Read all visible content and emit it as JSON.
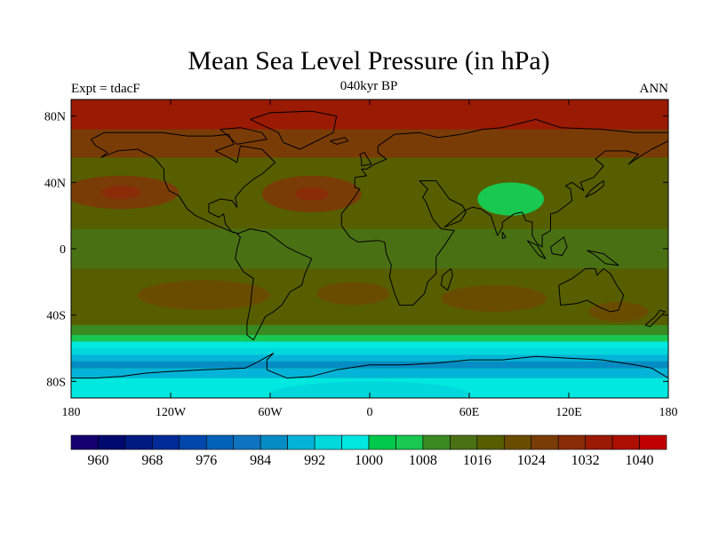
{
  "title": "Mean Sea Level Pressure (in hPa)",
  "experiment_label": "Expt = tdacF",
  "period_label": "040kyr BP",
  "season_label": "ANN",
  "map": {
    "projection": "cylindrical-equidistant",
    "lon_range": [
      -180,
      180
    ],
    "lat_range": [
      -90,
      90
    ],
    "lon_ticks": [
      {
        "value": -180,
        "label": "180"
      },
      {
        "value": -120,
        "label": "120W"
      },
      {
        "value": -60,
        "label": "60W"
      },
      {
        "value": 0,
        "label": "0"
      },
      {
        "value": 60,
        "label": "60E"
      },
      {
        "value": 120,
        "label": "120E"
      },
      {
        "value": 180,
        "label": "180"
      }
    ],
    "lat_ticks": [
      {
        "value": 80,
        "label": "80N"
      },
      {
        "value": 40,
        "label": "40N"
      },
      {
        "value": 0,
        "label": "0"
      },
      {
        "value": -40,
        "label": "40S"
      },
      {
        "value": -80,
        "label": "80S"
      }
    ],
    "coastline_color": "#000000"
  },
  "colorbar": {
    "levels": [
      956,
      960,
      964,
      968,
      972,
      976,
      980,
      984,
      988,
      992,
      996,
      1000,
      1004,
      1008,
      1012,
      1016,
      1020,
      1024,
      1028,
      1032,
      1036,
      1040,
      1044
    ],
    "colors": [
      "#14006e",
      "#00096e",
      "#001a82",
      "#002b96",
      "#0048ac",
      "#0062b8",
      "#0f74c0",
      "#068cc4",
      "#04b4d8",
      "#00d8dc",
      "#00e8e0",
      "#00c84a",
      "#18c850",
      "#3a8a22",
      "#4a7014",
      "#565e00",
      "#6a4c00",
      "#7a3c06",
      "#8a2c08",
      "#9a1a04",
      "#ac0e02",
      "#c00000"
    ],
    "labels": [
      {
        "value": 960,
        "label": "960"
      },
      {
        "value": 968,
        "label": "968"
      },
      {
        "value": 976,
        "label": "976"
      },
      {
        "value": 984,
        "label": "984"
      },
      {
        "value": 992,
        "label": "992"
      },
      {
        "value": 1000,
        "label": "1000"
      },
      {
        "value": 1008,
        "label": "1008"
      },
      {
        "value": 1016,
        "label": "1016"
      },
      {
        "value": 1024,
        "label": "1024"
      },
      {
        "value": 1032,
        "label": "1032"
      },
      {
        "value": 1040,
        "label": "1040"
      }
    ]
  },
  "field_background_hpa": 1016,
  "field_features": [
    {
      "type": "band",
      "lat_range": [
        55,
        90
      ],
      "hpa": 1024
    },
    {
      "type": "band",
      "lat_range": [
        72,
        90
      ],
      "hpa": 1032
    },
    {
      "type": "band",
      "lat_range": [
        20,
        48
      ],
      "hpa": 1016
    },
    {
      "type": "band",
      "lat_range": [
        -12,
        12
      ],
      "hpa": 1012
    },
    {
      "type": "band",
      "lat_range": [
        -46,
        -20
      ],
      "hpa": 1016
    },
    {
      "type": "band",
      "lat_range": [
        -52,
        -46
      ],
      "hpa": 1008
    },
    {
      "type": "band",
      "lat_range": [
        -56,
        -52
      ],
      "hpa": 1004
    },
    {
      "type": "band",
      "lat_range": [
        -60,
        -56
      ],
      "hpa": 996
    },
    {
      "type": "band",
      "lat_range": [
        -64,
        -60
      ],
      "hpa": 992
    },
    {
      "type": "band",
      "lat_range": [
        -68,
        -64
      ],
      "hpa": 988
    },
    {
      "type": "band",
      "lat_range": [
        -72,
        -68
      ],
      "hpa": 984
    },
    {
      "type": "band",
      "lat_range": [
        -78,
        -72
      ],
      "hpa": 988
    },
    {
      "type": "band",
      "lat_range": [
        -90,
        -78
      ],
      "hpa": 996
    },
    {
      "type": "blob",
      "lon": -150,
      "lat": 34,
      "rlon": 35,
      "rlat": 10,
      "hpa": 1024
    },
    {
      "type": "blob",
      "lon": -150,
      "lat": 34,
      "rlon": 12,
      "rlat": 4,
      "hpa": 1028
    },
    {
      "type": "blob",
      "lon": -35,
      "lat": 33,
      "rlon": 30,
      "rlat": 11,
      "hpa": 1024
    },
    {
      "type": "blob",
      "lon": -35,
      "lat": 33,
      "rlon": 10,
      "rlat": 4,
      "hpa": 1028
    },
    {
      "type": "blob",
      "lon": 85,
      "lat": 30,
      "rlon": 20,
      "rlat": 10,
      "hpa": 1004
    },
    {
      "type": "blob",
      "lon": -100,
      "lat": -28,
      "rlon": 40,
      "rlat": 9,
      "hpa": 1020
    },
    {
      "type": "blob",
      "lon": -10,
      "lat": -27,
      "rlon": 22,
      "rlat": 7,
      "hpa": 1020
    },
    {
      "type": "blob",
      "lon": 75,
      "lat": -30,
      "rlon": 32,
      "rlat": 8,
      "hpa": 1020
    },
    {
      "type": "blob",
      "lon": 150,
      "lat": -38,
      "rlon": 18,
      "rlat": 6,
      "hpa": 1020
    },
    {
      "type": "blob",
      "lon": 0,
      "lat": -88,
      "rlon": 60,
      "rlat": 8,
      "hpa": 992
    }
  ],
  "coastlines": {
    "north_america": [
      [
        -168,
        66
      ],
      [
        -160,
        70
      ],
      [
        -140,
        70
      ],
      [
        -125,
        70
      ],
      [
        -110,
        68
      ],
      [
        -95,
        68
      ],
      [
        -85,
        69
      ],
      [
        -82,
        63
      ],
      [
        -93,
        59
      ],
      [
        -85,
        55
      ],
      [
        -80,
        52
      ],
      [
        -78,
        62
      ],
      [
        -65,
        60
      ],
      [
        -57,
        52
      ],
      [
        -65,
        45
      ],
      [
        -70,
        42
      ],
      [
        -76,
        37
      ],
      [
        -81,
        31
      ],
      [
        -80,
        25
      ],
      [
        -83,
        29
      ],
      [
        -90,
        30
      ],
      [
        -97,
        27
      ],
      [
        -97,
        22
      ],
      [
        -91,
        19
      ],
      [
        -88,
        21
      ],
      [
        -87,
        15
      ],
      [
        -83,
        10
      ],
      [
        -79,
        9
      ],
      [
        -85,
        11
      ],
      [
        -92,
        14
      ],
      [
        -105,
        20
      ],
      [
        -110,
        24
      ],
      [
        -115,
        32
      ],
      [
        -121,
        35
      ],
      [
        -124,
        42
      ],
      [
        -124,
        48
      ],
      [
        -130,
        55
      ],
      [
        -140,
        60
      ],
      [
        -152,
        59
      ],
      [
        -162,
        55
      ],
      [
        -158,
        58
      ],
      [
        -165,
        62
      ],
      [
        -168,
        66
      ]
    ],
    "greenland": [
      [
        -72,
        78
      ],
      [
        -60,
        82
      ],
      [
        -35,
        83
      ],
      [
        -20,
        80
      ],
      [
        -22,
        70
      ],
      [
        -42,
        60
      ],
      [
        -52,
        64
      ],
      [
        -55,
        70
      ],
      [
        -72,
        78
      ]
    ],
    "south_america": [
      [
        -80,
        9
      ],
      [
        -72,
        12
      ],
      [
        -62,
        10
      ],
      [
        -50,
        1
      ],
      [
        -44,
        -2
      ],
      [
        -35,
        -6
      ],
      [
        -39,
        -15
      ],
      [
        -41,
        -22
      ],
      [
        -48,
        -26
      ],
      [
        -53,
        -34
      ],
      [
        -58,
        -38
      ],
      [
        -63,
        -41
      ],
      [
        -65,
        -45
      ],
      [
        -68,
        -51
      ],
      [
        -70,
        -55
      ],
      [
        -74,
        -52
      ],
      [
        -74,
        -45
      ],
      [
        -72,
        -35
      ],
      [
        -71,
        -25
      ],
      [
        -70,
        -18
      ],
      [
        -76,
        -14
      ],
      [
        -81,
        -6
      ],
      [
        -80,
        0
      ],
      [
        -78,
        7
      ],
      [
        -80,
        9
      ]
    ],
    "eurasia_africa": [
      [
        -9,
        43
      ],
      [
        -9,
        37
      ],
      [
        -6,
        36
      ],
      [
        -10,
        30
      ],
      [
        -17,
        21
      ],
      [
        -17,
        14
      ],
      [
        -12,
        7
      ],
      [
        -7,
        4
      ],
      [
        5,
        5
      ],
      [
        9,
        4
      ],
      [
        10,
        -3
      ],
      [
        13,
        -10
      ],
      [
        12,
        -17
      ],
      [
        15,
        -27
      ],
      [
        18,
        -34
      ],
      [
        26,
        -34
      ],
      [
        33,
        -27
      ],
      [
        35,
        -20
      ],
      [
        40,
        -15
      ],
      [
        40,
        -5
      ],
      [
        45,
        2
      ],
      [
        51,
        11
      ],
      [
        43,
        12
      ],
      [
        38,
        18
      ],
      [
        34,
        28
      ],
      [
        32,
        31
      ],
      [
        35,
        36
      ],
      [
        30,
        41
      ],
      [
        40,
        41
      ],
      [
        48,
        30
      ],
      [
        56,
        26
      ],
      [
        58,
        22
      ],
      [
        55,
        17
      ],
      [
        45,
        13
      ],
      [
        57,
        23
      ],
      [
        62,
        25
      ],
      [
        67,
        24
      ],
      [
        73,
        20
      ],
      [
        77,
        8
      ],
      [
        80,
        13
      ],
      [
        80,
        16
      ],
      [
        87,
        21
      ],
      [
        92,
        22
      ],
      [
        94,
        17
      ],
      [
        98,
        16
      ],
      [
        98,
        8
      ],
      [
        101,
        3
      ],
      [
        104,
        1
      ],
      [
        104,
        8
      ],
      [
        109,
        11
      ],
      [
        109,
        21
      ],
      [
        113,
        22
      ],
      [
        122,
        29
      ],
      [
        121,
        36
      ],
      [
        118,
        38
      ],
      [
        122,
        40
      ],
      [
        129,
        35
      ],
      [
        127,
        40
      ],
      [
        135,
        43
      ],
      [
        141,
        50
      ],
      [
        136,
        54
      ],
      [
        142,
        59
      ],
      [
        155,
        59
      ],
      [
        162,
        57
      ],
      [
        156,
        51
      ],
      [
        162,
        55
      ],
      [
        170,
        60
      ],
      [
        180,
        65
      ],
      [
        180,
        70
      ],
      [
        160,
        70
      ],
      [
        140,
        72
      ],
      [
        115,
        73
      ],
      [
        100,
        78
      ],
      [
        80,
        73
      ],
      [
        68,
        72
      ],
      [
        55,
        69
      ],
      [
        41,
        67
      ],
      [
        30,
        70
      ],
      [
        15,
        69
      ],
      [
        5,
        62
      ],
      [
        5,
        58
      ],
      [
        10,
        54
      ],
      [
        3,
        51
      ],
      [
        -2,
        48
      ],
      [
        -5,
        48
      ],
      [
        -2,
        44
      ],
      [
        -9,
        43
      ]
    ],
    "australia": [
      [
        114,
        -22
      ],
      [
        122,
        -18
      ],
      [
        130,
        -12
      ],
      [
        136,
        -12
      ],
      [
        137,
        -16
      ],
      [
        141,
        -12
      ],
      [
        145,
        -15
      ],
      [
        149,
        -22
      ],
      [
        153,
        -28
      ],
      [
        150,
        -37
      ],
      [
        145,
        -38
      ],
      [
        138,
        -35
      ],
      [
        131,
        -31
      ],
      [
        125,
        -33
      ],
      [
        115,
        -34
      ],
      [
        114,
        -22
      ]
    ],
    "antarctica": [
      [
        -180,
        -78
      ],
      [
        -165,
        -78
      ],
      [
        -150,
        -77
      ],
      [
        -135,
        -75
      ],
      [
        -120,
        -74
      ],
      [
        -100,
        -73
      ],
      [
        -75,
        -72
      ],
      [
        -67,
        -68
      ],
      [
        -58,
        -63
      ],
      [
        -62,
        -67
      ],
      [
        -62,
        -73
      ],
      [
        -50,
        -78
      ],
      [
        -35,
        -77
      ],
      [
        -20,
        -73
      ],
      [
        0,
        -70
      ],
      [
        20,
        -70
      ],
      [
        40,
        -69
      ],
      [
        60,
        -67
      ],
      [
        80,
        -67
      ],
      [
        100,
        -65
      ],
      [
        120,
        -66
      ],
      [
        140,
        -67
      ],
      [
        160,
        -70
      ],
      [
        170,
        -72
      ],
      [
        180,
        -78
      ]
    ],
    "madagascar": [
      [
        44,
        -16
      ],
      [
        49,
        -12
      ],
      [
        50,
        -16
      ],
      [
        47,
        -25
      ],
      [
        43,
        -22
      ],
      [
        44,
        -16
      ]
    ],
    "great_britain": [
      [
        -5,
        50
      ],
      [
        1,
        51
      ],
      [
        -2,
        56
      ],
      [
        -3,
        58
      ],
      [
        -6,
        57
      ],
      [
        -5,
        54
      ],
      [
        -5,
        50
      ]
    ],
    "japan": [
      [
        130,
        31
      ],
      [
        136,
        34
      ],
      [
        141,
        38
      ],
      [
        141,
        41
      ],
      [
        138,
        39
      ],
      [
        133,
        35
      ],
      [
        130,
        31
      ]
    ],
    "borneo": [
      [
        109,
        1
      ],
      [
        117,
        7
      ],
      [
        119,
        1
      ],
      [
        116,
        -4
      ],
      [
        110,
        -3
      ],
      [
        109,
        1
      ]
    ],
    "sumatra": [
      [
        95,
        5
      ],
      [
        101,
        2
      ],
      [
        106,
        -6
      ],
      [
        102,
        -4
      ],
      [
        95,
        5
      ]
    ],
    "new_guinea": [
      [
        131,
        -1
      ],
      [
        141,
        -3
      ],
      [
        150,
        -10
      ],
      [
        142,
        -9
      ],
      [
        136,
        -4
      ],
      [
        131,
        -1
      ]
    ],
    "new_zealand": [
      [
        166,
        -46
      ],
      [
        172,
        -41
      ],
      [
        175,
        -37
      ],
      [
        178,
        -38
      ],
      [
        174,
        -42
      ],
      [
        169,
        -47
      ],
      [
        166,
        -46
      ]
    ],
    "iceland": [
      [
        -24,
        65
      ],
      [
        -15,
        67
      ],
      [
        -13,
        65
      ],
      [
        -20,
        63
      ],
      [
        -24,
        65
      ]
    ],
    "baffin": [
      [
        -80,
        63
      ],
      [
        -62,
        66
      ],
      [
        -65,
        70
      ],
      [
        -78,
        73
      ],
      [
        -90,
        72
      ],
      [
        -80,
        63
      ]
    ],
    "sri_lanka": [
      [
        80,
        6
      ],
      [
        82,
        7
      ],
      [
        80,
        10
      ],
      [
        80,
        6
      ]
    ]
  }
}
